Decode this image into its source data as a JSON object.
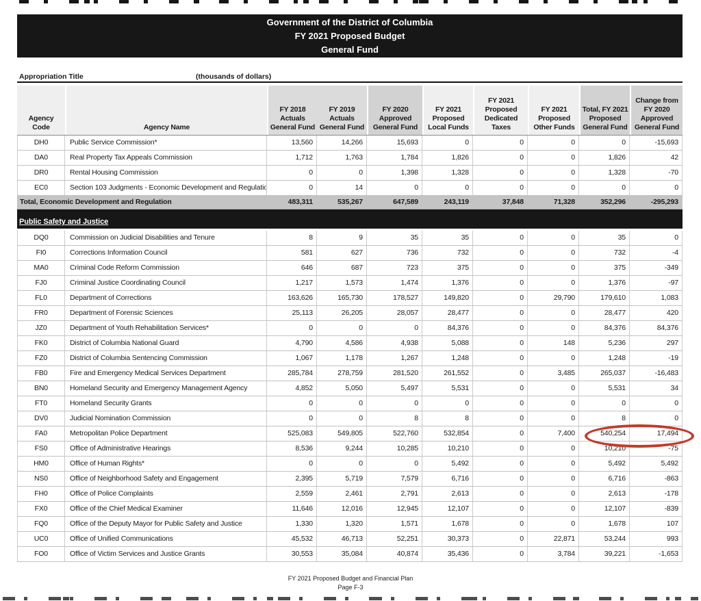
{
  "page": {
    "title_lines": [
      "Government of the District of Columbia",
      "FY 2021 Proposed Budget",
      "General Fund"
    ],
    "appropriation_label": "Appropriation Title",
    "units_label": "(thousands of dollars)",
    "footer_line1": "FY 2021 Proposed Budget and Financial Plan",
    "footer_line2": "Page F-3"
  },
  "colors": {
    "highlight_red": "#C23B28",
    "section_bar_black": "#171717",
    "total_row_gray": "#C4C4C4",
    "header_band_dark": "#D2D2D2",
    "header_band_mid": "#DBDBDB",
    "header_band_light": "#EFEFEF"
  },
  "table": {
    "headers": [
      {
        "label": "Agency\nCode",
        "band": "light"
      },
      {
        "label": "Agency Name",
        "band": "light"
      },
      {
        "label": "FY 2018\nActuals\nGeneral Fund",
        "band": "mid"
      },
      {
        "label": "FY 2019\nActuals\nGeneral Fund",
        "band": "mid"
      },
      {
        "label": "FY 2020\nApproved\nGeneral Fund",
        "band": "dark"
      },
      {
        "label": "FY 2021\nProposed\nLocal Funds",
        "band": "light"
      },
      {
        "label": "FY 2021\nProposed\nDedicated Taxes",
        "band": "light"
      },
      {
        "label": "FY 2021\nProposed\nOther Funds",
        "band": "light"
      },
      {
        "label": "Total, FY 2021\nProposed\nGeneral Fund",
        "band": "dark"
      },
      {
        "label": "Change from\nFY 2020\nApproved\nGeneral Fund",
        "band": "dark"
      }
    ],
    "sections": [
      {
        "type": "row",
        "code": "DH0",
        "name": "Public Service Commission*",
        "values": [
          "13,560",
          "14,266",
          "15,693",
          "0",
          "0",
          "0",
          "0",
          "-15,693"
        ]
      },
      {
        "type": "row",
        "code": "DA0",
        "name": "Real Property Tax Appeals Commission",
        "values": [
          "1,712",
          "1,763",
          "1,784",
          "1,826",
          "0",
          "0",
          "1,826",
          "42"
        ]
      },
      {
        "type": "row",
        "code": "DR0",
        "name": "Rental Housing Commission",
        "values": [
          "0",
          "0",
          "1,398",
          "1,328",
          "0",
          "0",
          "1,328",
          "-70"
        ]
      },
      {
        "type": "row",
        "code": "EC0",
        "name": "Section 103 Judgments - Economic Development and Regulation",
        "values": [
          "0",
          "14",
          "0",
          "0",
          "0",
          "0",
          "0",
          "0"
        ]
      },
      {
        "type": "total",
        "name": "Total, Economic Development and Regulation",
        "values": [
          "483,311",
          "535,267",
          "647,589",
          "243,119",
          "37,848",
          "71,328",
          "352,296",
          "-295,293"
        ]
      },
      {
        "type": "section",
        "label": "Public Safety and Justice"
      },
      {
        "type": "row",
        "code": "DQ0",
        "name": "Commission on Judicial Disabilities and Tenure",
        "values": [
          "8",
          "9",
          "35",
          "35",
          "0",
          "0",
          "35",
          "0"
        ]
      },
      {
        "type": "row",
        "code": "FI0",
        "name": "Corrections Information Council",
        "values": [
          "581",
          "627",
          "736",
          "732",
          "0",
          "0",
          "732",
          "-4"
        ]
      },
      {
        "type": "row",
        "code": "MA0",
        "name": "Criminal Code Reform Commission",
        "values": [
          "646",
          "687",
          "723",
          "375",
          "0",
          "0",
          "375",
          "-349"
        ]
      },
      {
        "type": "row",
        "code": "FJ0",
        "name": "Criminal Justice Coordinating Council",
        "values": [
          "1,217",
          "1,573",
          "1,474",
          "1,376",
          "0",
          "0",
          "1,376",
          "-97"
        ]
      },
      {
        "type": "row",
        "code": "FL0",
        "name": "Department of Corrections",
        "values": [
          "163,626",
          "165,730",
          "178,527",
          "149,820",
          "0",
          "29,790",
          "179,610",
          "1,083"
        ]
      },
      {
        "type": "row",
        "code": "FR0",
        "name": "Department of Forensic Sciences",
        "values": [
          "25,113",
          "26,205",
          "28,057",
          "28,477",
          "0",
          "0",
          "28,477",
          "420"
        ]
      },
      {
        "type": "row",
        "code": "JZ0",
        "name": "Department of Youth Rehabilitation Services*",
        "values": [
          "0",
          "0",
          "0",
          "84,376",
          "0",
          "0",
          "84,376",
          "84,376"
        ]
      },
      {
        "type": "row",
        "code": "FK0",
        "name": "District of Columbia National Guard",
        "values": [
          "4,790",
          "4,586",
          "4,938",
          "5,088",
          "0",
          "148",
          "5,236",
          "297"
        ]
      },
      {
        "type": "row",
        "code": "FZ0",
        "name": "District of Columbia Sentencing Commission",
        "values": [
          "1,067",
          "1,178",
          "1,267",
          "1,248",
          "0",
          "0",
          "1,248",
          "-19"
        ]
      },
      {
        "type": "row",
        "code": "FB0",
        "name": "Fire and Emergency Medical Services Department",
        "values": [
          "285,784",
          "278,759",
          "281,520",
          "261,552",
          "0",
          "3,485",
          "265,037",
          "-16,483"
        ]
      },
      {
        "type": "row",
        "code": "BN0",
        "name": "Homeland Security and Emergency Management Agency",
        "values": [
          "4,852",
          "5,050",
          "5,497",
          "5,531",
          "0",
          "0",
          "5,531",
          "34"
        ]
      },
      {
        "type": "row",
        "code": "FT0",
        "name": "Homeland Security Grants",
        "values": [
          "0",
          "0",
          "0",
          "0",
          "0",
          "0",
          "0",
          "0"
        ]
      },
      {
        "type": "row",
        "code": "DV0",
        "name": "Judicial Nomination Commission",
        "values": [
          "0",
          "0",
          "8",
          "8",
          "0",
          "0",
          "8",
          "0"
        ]
      },
      {
        "type": "row",
        "code": "FA0",
        "name": "Metropolitan Police Department",
        "values": [
          "525,083",
          "549,805",
          "522,760",
          "532,854",
          "0",
          "7,400",
          "540,254",
          "17,494"
        ],
        "highlighted": true
      },
      {
        "type": "row",
        "code": "FS0",
        "name": "Office of Administrative Hearings",
        "values": [
          "8,536",
          "9,244",
          "10,285",
          "10,210",
          "0",
          "0",
          "10,210",
          "-75"
        ]
      },
      {
        "type": "row",
        "code": "HM0",
        "name": "Office of Human Rights*",
        "values": [
          "0",
          "0",
          "0",
          "5,492",
          "0",
          "0",
          "5,492",
          "5,492"
        ]
      },
      {
        "type": "row",
        "code": "NS0",
        "name": "Office of Neighborhood Safety and Engagement",
        "values": [
          "2,395",
          "5,719",
          "7,579",
          "6,716",
          "0",
          "0",
          "6,716",
          "-863"
        ]
      },
      {
        "type": "row",
        "code": "FH0",
        "name": "Office of Police Complaints",
        "values": [
          "2,559",
          "2,461",
          "2,791",
          "2,613",
          "0",
          "0",
          "2,613",
          "-178"
        ]
      },
      {
        "type": "row",
        "code": "FX0",
        "name": "Office of the Chief Medical Examiner",
        "values": [
          "11,646",
          "12,016",
          "12,945",
          "12,107",
          "0",
          "0",
          "12,107",
          "-839"
        ]
      },
      {
        "type": "row",
        "code": "FQ0",
        "name": "Office of the Deputy Mayor for Public Safety and Justice",
        "values": [
          "1,330",
          "1,320",
          "1,571",
          "1,678",
          "0",
          "0",
          "1,678",
          "107"
        ]
      },
      {
        "type": "row",
        "code": "UC0",
        "name": "Office of Unified Communications",
        "values": [
          "45,532",
          "46,713",
          "52,251",
          "30,373",
          "0",
          "22,871",
          "53,244",
          "993"
        ]
      },
      {
        "type": "row",
        "code": "FO0",
        "name": "Office of Victim Services and Justice Grants",
        "values": [
          "30,553",
          "35,084",
          "40,874",
          "35,436",
          "0",
          "3,784",
          "39,221",
          "-1,653"
        ]
      }
    ],
    "annotation": {
      "shape": "ellipse",
      "color": "#C23B28",
      "row_code": "FA0",
      "circled_values": [
        "540,254",
        "17,494"
      ]
    }
  }
}
